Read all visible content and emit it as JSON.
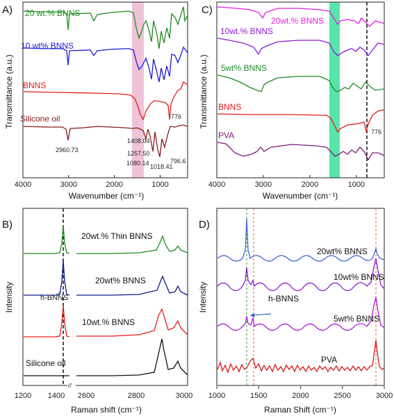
{
  "panels": {
    "A": {
      "letter": "A)",
      "xlabel": "Wavenumber (cm⁻¹)",
      "ylabel": "Transmittance (a.u.)",
      "xlim": [
        4000,
        400
      ],
      "xticks": [
        "4000",
        "3000",
        "2000",
        "1000"
      ],
      "xtick_values": [
        4000,
        3000,
        2000,
        1000
      ],
      "highlight_range": [
        1620,
        1400
      ],
      "highlight_color": "#e8a9c8",
      "traces": [
        {
          "label": "20 wt.% BNNS",
          "color": "#1f8a1f"
        },
        {
          "label": "10 wt% BNNS",
          "color": "#1a1ad6"
        },
        {
          "label": "BNNS",
          "color": "#e31a1a"
        },
        {
          "label": "Silicone oil",
          "color": "#8b1a1a"
        }
      ],
      "peaks": [
        "2960.73",
        "1408.04",
        "1257.50",
        "1080.14",
        "1018.41",
        "796.6",
        "776"
      ]
    },
    "B": {
      "letter": "B)",
      "xlabel": "Raman shift (cm⁻¹)",
      "ylabel": "Intensity",
      "xticks": [
        "1200",
        "1400",
        "2600",
        "2800",
        "3000"
      ],
      "break_mark": "//",
      "h_bnns": "h-BNNS",
      "traces": [
        {
          "label": "20wt.% Thin BNNS",
          "color": "#1f8a1f"
        },
        {
          "label": "20wt% BNNS",
          "color": "#0d1a8a"
        },
        {
          "label": "10wt.% BNNS",
          "color": "#e31a1a"
        },
        {
          "label": "Silicone oil",
          "color": "#111111"
        }
      ]
    },
    "C": {
      "letter": "C)",
      "xlabel": "Wavenumber (cm⁻¹)",
      "ylabel": "Transmittance (a.u.)",
      "xlim": [
        4000,
        400
      ],
      "xticks": [
        "4000",
        "3000",
        "2000",
        "1000"
      ],
      "xtick_values": [
        4000,
        3000,
        2000,
        1000
      ],
      "highlight_range": [
        1600,
        1380
      ],
      "highlight_color": "#3be09a",
      "traces": [
        {
          "label": "20wt.% BNNS",
          "color": "#e81ce0"
        },
        {
          "label": "10wt.% BNNS",
          "color": "#8b1ad6"
        },
        {
          "label": "5wt% BNNS",
          "color": "#1f8a2a"
        },
        {
          "label": "BNNS",
          "color": "#e31a1a"
        },
        {
          "label": "PVA",
          "color": "#7a1a7a"
        }
      ],
      "peaks": [
        "776"
      ]
    },
    "D": {
      "letter": "D)",
      "xlabel": "Raman Shift (cm⁻¹)",
      "ylabel": "Intensity",
      "xlim": [
        1000,
        3000
      ],
      "xticks": [
        "1000",
        "1500",
        "2000",
        "2500",
        "3000"
      ],
      "xtick_values": [
        1000,
        1500,
        2000,
        2500,
        3000
      ],
      "h_bnns": "h-BNNS",
      "traces": [
        {
          "label": "20wt% BNNS",
          "color": "#3a5fd0"
        },
        {
          "label": "10wt% BNNS",
          "color": "#8b1ad6"
        },
        {
          "label": "5wt% BNNS",
          "color": "#b01ad6"
        },
        {
          "label": "PVA",
          "color": "#d41a1a"
        }
      ]
    }
  },
  "chart_data": [
    {
      "type": "line",
      "xlabel": "Wavenumber (cm⁻¹)",
      "ylabel": "Transmittance (a.u.)",
      "xlim": [
        4000,
        400
      ],
      "series": [
        {
          "name": "20 wt.% BNNS",
          "x": [
            4000,
            3200,
            2960,
            2400,
            1620,
            1408,
            1260,
            1080,
            1018,
            800,
            400
          ],
          "y": [
            0.95,
            0.95,
            0.6,
            0.9,
            0.9,
            0.3,
            0.55,
            0.2,
            0.25,
            0.4,
            0.95
          ]
        },
        {
          "name": "10 wt% BNNS",
          "x": [
            4000,
            3200,
            2960,
            2400,
            1620,
            1408,
            1260,
            1080,
            1018,
            800,
            400
          ],
          "y": [
            0.95,
            0.95,
            0.6,
            0.92,
            0.9,
            0.3,
            0.55,
            0.2,
            0.25,
            0.4,
            0.9
          ]
        },
        {
          "name": "BNNS",
          "x": [
            4000,
            2000,
            1600,
            1408,
            1200,
            800,
            776,
            500,
            400
          ],
          "y": [
            0.95,
            0.9,
            0.88,
            0.25,
            0.7,
            0.75,
            0.1,
            0.8,
            0.95
          ]
        },
        {
          "name": "Silicone oil",
          "x": [
            4000,
            3100,
            2960.73,
            2500,
            1408.04,
            1257.5,
            1080.14,
            1018.41,
            796.6,
            400
          ],
          "y": [
            0.9,
            0.9,
            0.5,
            0.88,
            0.85,
            0.4,
            0.1,
            0.15,
            0.2,
            0.9
          ]
        }
      ],
      "annotations": [
        "2960.73",
        "1408.04",
        "1257.50",
        "1080.14",
        "1018.41",
        "796.6",
        "776"
      ]
    },
    {
      "type": "line",
      "xlabel": "Raman shift (cm⁻¹)",
      "ylabel": "Intensity",
      "x_segments": [
        [
          1200,
          1400
        ],
        [
          2600,
          3000
        ]
      ],
      "series": [
        {
          "name": "20wt.% Thin BNNS",
          "peaks_x": [
            1366,
            2905,
            2962
          ]
        },
        {
          "name": "20wt% BNNS",
          "peaks_x": [
            1366,
            2905,
            2962
          ]
        },
        {
          "name": "10wt.% BNNS",
          "peaks_x": [
            1366,
            2905,
            2962
          ]
        },
        {
          "name": "Silicone oil",
          "peaks_x": [
            2905,
            2962
          ]
        }
      ],
      "annotations": [
        "h-BNNS"
      ]
    },
    {
      "type": "line",
      "xlabel": "Wavenumber (cm⁻¹)",
      "ylabel": "Transmittance (a.u.)",
      "xlim": [
        4000,
        400
      ],
      "series": [
        {
          "name": "20wt.% BNNS"
        },
        {
          "name": "10wt.% BNNS"
        },
        {
          "name": "5wt% BNNS"
        },
        {
          "name": "BNNS"
        },
        {
          "name": "PVA"
        }
      ],
      "annotations": [
        "776"
      ]
    },
    {
      "type": "line",
      "xlabel": "Raman Shift (cm⁻¹)",
      "ylabel": "Intensity",
      "xlim": [
        1000,
        3000
      ],
      "series": [
        {
          "name": "20wt% BNNS",
          "peaks_x": [
            1366,
            2920
          ]
        },
        {
          "name": "10wt% BNNS",
          "peaks_x": [
            1366,
            1440,
            2920
          ]
        },
        {
          "name": "5wt% BNNS",
          "peaks_x": [
            1366,
            1440,
            2920
          ]
        },
        {
          "name": "PVA",
          "peaks_x": [
            1440,
            2920
          ]
        }
      ],
      "annotations": [
        "h-BNNS"
      ]
    }
  ]
}
